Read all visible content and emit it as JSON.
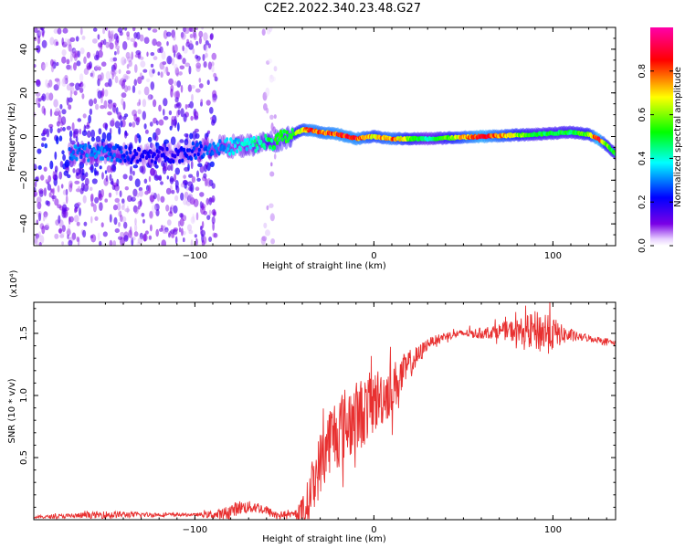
{
  "figure_title": "C2E2.2022.340.23.48.G27",
  "chart_data": [
    {
      "type": "heatmap",
      "title": "",
      "xlabel": "Height of straight line (km)",
      "ylabel": "Frequency (Hz)",
      "xlim": [
        -190,
        135
      ],
      "ylim": [
        -50,
        50
      ],
      "x_ticks": [
        -100,
        0,
        100
      ],
      "y_ticks": [
        -40,
        -20,
        0,
        20,
        40
      ],
      "colorbar": {
        "label": "Normalized spectral amplitude",
        "range": [
          0,
          1
        ],
        "ticks": [
          0.0,
          0.2,
          0.4,
          0.6,
          0.8
        ]
      },
      "colormap": [
        "#ffffff",
        "#d8b4f8",
        "#7a00e6",
        "#0000ff",
        "#00ffff",
        "#00ff00",
        "#ffff00",
        "#ff0000",
        "#ff00aa"
      ],
      "ridge": {
        "x": [
          -170,
          -150,
          -130,
          -110,
          -90,
          -70,
          -55,
          -45,
          -40,
          -35,
          -30,
          -20,
          -10,
          0,
          10,
          30,
          60,
          90,
          110,
          120,
          125,
          130,
          135
        ],
        "freq": [
          -8,
          -7,
          -9,
          -8,
          -5,
          -4,
          -2,
          1,
          3,
          3,
          2,
          1,
          -1,
          0,
          -1,
          -1,
          0,
          1,
          2,
          1,
          -1,
          -4,
          -8
        ],
        "amplitude": [
          0.3,
          0.3,
          0.2,
          0.2,
          0.3,
          0.4,
          0.5,
          0.55,
          0.7,
          0.85,
          0.8,
          0.85,
          0.85,
          0.7,
          0.8,
          0.4,
          0.9,
          0.5,
          0.5,
          0.6,
          0.95,
          0.6,
          0.5
        ]
      },
      "noise_bands": [
        {
          "x_range": [
            -190,
            -88
          ],
          "freq_range": [
            -50,
            50
          ],
          "amplitude": 0.2
        },
        {
          "x_range": [
            -62,
            -55
          ],
          "freq_range": [
            -50,
            50
          ],
          "amplitude": 0.1
        }
      ]
    },
    {
      "type": "line",
      "title": "",
      "xlabel": "Height of straight line (km)",
      "ylabel": "SNR (10 * v/v)",
      "y_multiplier": "(x10⁴)",
      "xlim": [
        -190,
        135
      ],
      "ylim": [
        0,
        1.75
      ],
      "x_ticks": [
        -100,
        0,
        100
      ],
      "y_ticks": [
        0.5,
        1.0,
        1.5
      ],
      "y_tick_labels": [
        "0.5",
        "1.0",
        "1.5"
      ],
      "color": "#e83030",
      "trend": {
        "x": [
          -190,
          -150,
          -100,
          -85,
          -75,
          -65,
          -55,
          -45,
          -38,
          -35,
          -30,
          -25,
          -20,
          -15,
          -10,
          -5,
          0,
          5,
          10,
          15,
          20,
          25,
          30,
          40,
          50,
          60,
          70,
          80,
          90,
          100,
          110,
          120,
          130,
          135
        ],
        "y": [
          0.02,
          0.04,
          0.04,
          0.04,
          0.1,
          0.1,
          0.04,
          0.04,
          0.08,
          0.25,
          0.45,
          0.65,
          0.72,
          0.78,
          0.82,
          0.88,
          0.95,
          1.0,
          1.05,
          1.15,
          1.25,
          1.32,
          1.42,
          1.48,
          1.5,
          1.5,
          1.52,
          1.52,
          1.52,
          1.5,
          1.48,
          1.46,
          1.44,
          1.42
        ]
      },
      "noise_amplitude": {
        "x": [
          -190,
          -150,
          -100,
          -80,
          -60,
          -45,
          -38,
          -30,
          -20,
          -10,
          0,
          10,
          20,
          30,
          50,
          70,
          85,
          95,
          105,
          115,
          135
        ],
        "y": [
          0.01,
          0.03,
          0.01,
          0.06,
          0.04,
          0.02,
          0.15,
          0.22,
          0.26,
          0.25,
          0.22,
          0.18,
          0.1,
          0.04,
          0.03,
          0.06,
          0.12,
          0.2,
          0.08,
          0.03,
          0.02
        ]
      }
    }
  ]
}
